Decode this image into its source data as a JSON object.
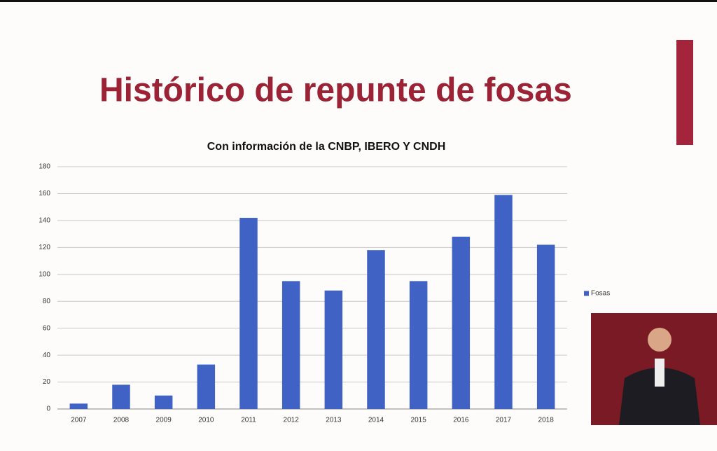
{
  "chart_data": {
    "type": "bar",
    "title": "Histórico de repunte de fosas",
    "subtitle": "Con información de la CNBP, IBERO  Y CNDH",
    "categories": [
      "2007",
      "2008",
      "2009",
      "2010",
      "2011",
      "2012",
      "2013",
      "2014",
      "2015",
      "2016",
      "2017",
      "2018"
    ],
    "series": [
      {
        "name": "Fosas",
        "color": "#3f62c4",
        "values": [
          4,
          18,
          10,
          33,
          142,
          95,
          88,
          118,
          95,
          128,
          159,
          122
        ]
      }
    ],
    "ylim": [
      0,
      180
    ],
    "yticks": [
      0,
      20,
      40,
      60,
      80,
      100,
      120,
      140,
      160,
      180
    ],
    "grid": true,
    "legend": "right"
  }
}
